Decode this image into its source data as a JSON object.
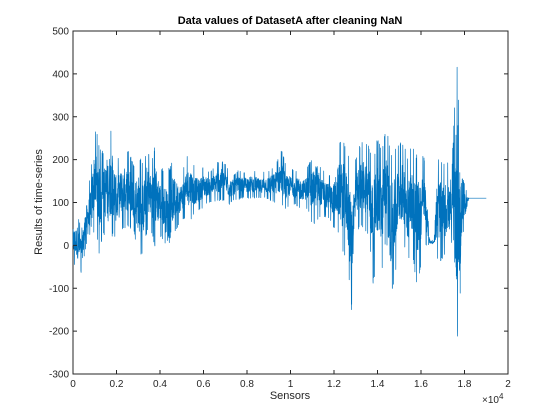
{
  "chart_data": {
    "type": "line",
    "title": "Data values of DatasetA after cleaning NaN",
    "xlabel": "Sensors",
    "ylabel": "Results of time-series",
    "x_exponent_label": "×10",
    "x_exponent_power": "4",
    "xlim": [
      0,
      20000
    ],
    "ylim": [
      -300,
      500
    ],
    "x_ticks": [
      0,
      2000,
      4000,
      6000,
      8000,
      10000,
      12000,
      14000,
      16000,
      18000,
      20000
    ],
    "x_tick_labels": [
      "0",
      "0.2",
      "0.4",
      "0.6",
      "0.8",
      "1",
      "1.2",
      "1.4",
      "1.6",
      "1.8",
      "2"
    ],
    "y_ticks": [
      -300,
      -200,
      -100,
      0,
      100,
      200,
      300,
      400,
      500
    ],
    "y_tick_labels": [
      "-300",
      "-200",
      "-100",
      "0",
      "100",
      "200",
      "300",
      "400",
      "500"
    ],
    "grid": false,
    "series_color": "#0072BD",
    "series": [
      {
        "x": [
          0,
          200,
          400,
          600,
          800,
          1000,
          1200,
          1400,
          1600,
          1800,
          2000,
          2200,
          2400,
          2600,
          2800,
          3000,
          3200,
          3400,
          3600,
          3800,
          4000,
          4200,
          4400,
          4600,
          4800,
          5000,
          5200,
          5400,
          5600,
          5800,
          6000,
          6200,
          6400,
          6600,
          6800,
          7000,
          7200,
          7400,
          7600,
          7800,
          8000,
          8200,
          8400,
          8600,
          8800,
          9000,
          9200,
          9400,
          9600,
          9800,
          10000,
          10200,
          10400,
          10600,
          10800,
          11000,
          11200,
          11400,
          11600,
          11800,
          12000,
          12200,
          12400,
          12600,
          12800,
          13000,
          13200,
          13400,
          13600,
          13800,
          14000,
          14200,
          14400,
          14600,
          14800,
          15000,
          15200,
          15400,
          15600,
          15800,
          16000,
          16200,
          16400,
          16600,
          16800,
          17000,
          17200,
          17400,
          17600,
          17700,
          17800,
          17900,
          18000,
          18200,
          18400,
          18600,
          18800,
          19000
        ],
        "y_max": [
          60,
          75,
          40,
          115,
          165,
          285,
          240,
          215,
          275,
          270,
          200,
          215,
          225,
          220,
          185,
          220,
          190,
          230,
          200,
          245,
          185,
          175,
          180,
          200,
          175,
          165,
          205,
          215,
          185,
          175,
          185,
          175,
          175,
          195,
          200,
          190,
          175,
          165,
          175,
          170,
          175,
          175,
          175,
          165,
          175,
          175,
          185,
          200,
          225,
          185,
          180,
          175,
          175,
          170,
          190,
          200,
          235,
          180,
          175,
          165,
          175,
          235,
          255,
          225,
          180,
          205,
          235,
          255,
          235,
          210,
          250,
          225,
          285,
          215,
          225,
          245,
          245,
          205,
          240,
          215,
          225,
          195,
          15,
          10,
          210,
          190,
          200,
          150,
          420,
          425,
          140,
          160,
          145,
          110,
          110,
          110,
          110,
          110
        ],
        "y_min": [
          -40,
          -60,
          -65,
          0,
          -20,
          40,
          -20,
          30,
          -10,
          20,
          10,
          30,
          40,
          40,
          30,
          -20,
          -30,
          30,
          30,
          -10,
          20,
          10,
          -60,
          20,
          40,
          60,
          60,
          60,
          70,
          80,
          90,
          100,
          100,
          100,
          105,
          100,
          95,
          105,
          105,
          110,
          110,
          110,
          110,
          110,
          110,
          105,
          100,
          100,
          90,
          80,
          100,
          95,
          85,
          90,
          80,
          50,
          50,
          70,
          65,
          60,
          40,
          20,
          -20,
          -30,
          -155,
          20,
          40,
          30,
          20,
          -90,
          -30,
          -60,
          10,
          -120,
          -80,
          0,
          0,
          -40,
          -20,
          -100,
          -50,
          0,
          0,
          5,
          -40,
          -40,
          -20,
          0,
          -230,
          -220,
          -120,
          10,
          40,
          110,
          110,
          110,
          110,
          110
        ]
      }
    ]
  }
}
